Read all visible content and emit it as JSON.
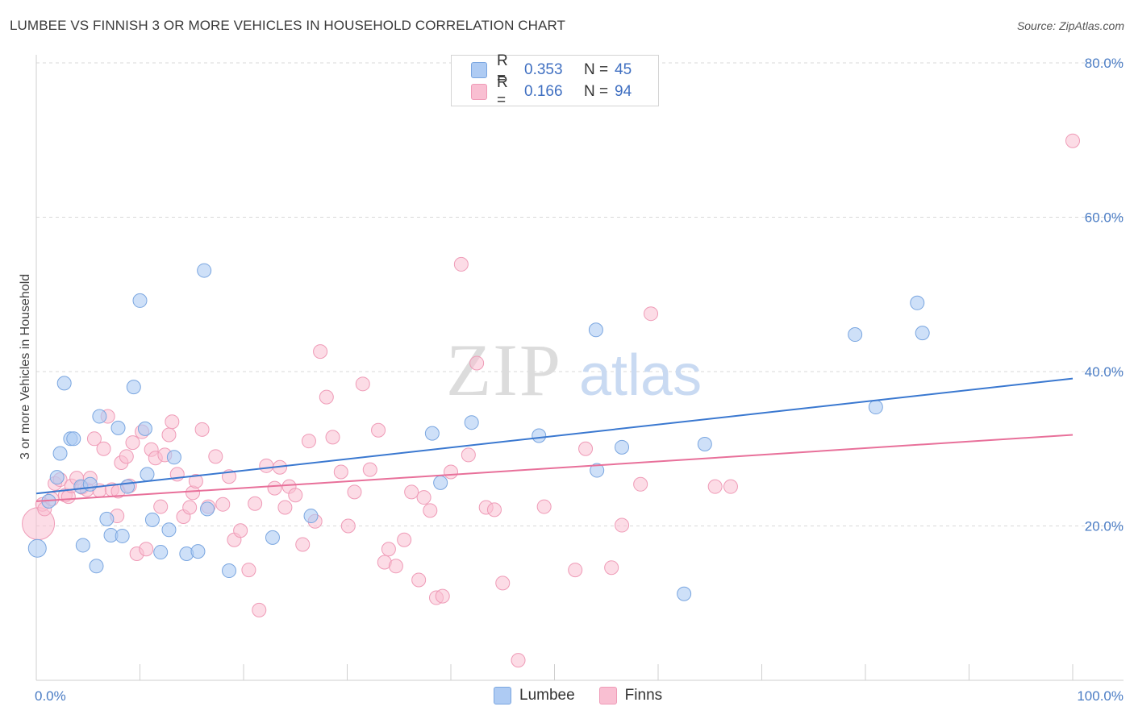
{
  "title": "LUMBEE VS FINNISH 3 OR MORE VEHICLES IN HOUSEHOLD CORRELATION CHART",
  "source": "Source: ZipAtlas.com",
  "watermark": {
    "zip": "ZIP",
    "atlas": "atlas"
  },
  "legend": {
    "series": [
      {
        "r_label": "R =",
        "r_value": "0.353",
        "n_label": "N =",
        "n_value": "45"
      },
      {
        "r_label": "R =",
        "r_value": "0.166",
        "n_label": "N =",
        "n_value": "94"
      }
    ]
  },
  "bottom_legend": [
    "Lumbee",
    "Finns"
  ],
  "colors": {
    "lumbee_fill": "#aecbf3",
    "lumbee_stroke": "#7aa6e0",
    "lumbee_line": "#3a78d0",
    "finns_fill": "#f9bfd2",
    "finns_stroke": "#ef9bb7",
    "finns_line": "#e8709a",
    "tick_text": "#4a7cc4",
    "grid": "#d9d9d9"
  },
  "chart_data": {
    "type": "scatter",
    "title": "LUMBEE VS FINNISH 3 OR MORE VEHICLES IN HOUSEHOLD CORRELATION CHART",
    "xlabel": "",
    "ylabel": "3 or more Vehicles in Household",
    "xlim": [
      0,
      100
    ],
    "ylim": [
      0,
      80
    ],
    "x_tick_labels": [
      "0.0%",
      "100.0%"
    ],
    "y_ticks": [
      20,
      40,
      60,
      80
    ],
    "y_tick_labels": [
      "20.0%",
      "40.0%",
      "60.0%",
      "80.0%"
    ],
    "grid": true,
    "legend_placement": "top-center",
    "series": [
      {
        "name": "Lumbee",
        "points": [
          [
            0.1,
            17.1
          ],
          [
            1.2,
            23.2
          ],
          [
            2.0,
            26.3
          ],
          [
            2.3,
            29.4
          ],
          [
            2.7,
            38.5
          ],
          [
            3.3,
            31.3
          ],
          [
            3.6,
            31.3
          ],
          [
            4.3,
            25.1
          ],
          [
            4.5,
            17.5
          ],
          [
            5.2,
            25.4
          ],
          [
            5.8,
            14.8
          ],
          [
            6.1,
            34.2
          ],
          [
            6.8,
            20.9
          ],
          [
            7.2,
            18.8
          ],
          [
            7.9,
            32.7
          ],
          [
            8.3,
            18.7
          ],
          [
            8.8,
            25.1
          ],
          [
            9.4,
            38.0
          ],
          [
            10.0,
            49.2
          ],
          [
            10.5,
            32.6
          ],
          [
            10.7,
            26.7
          ],
          [
            11.2,
            20.8
          ],
          [
            12.0,
            16.6
          ],
          [
            12.8,
            19.5
          ],
          [
            13.3,
            28.9
          ],
          [
            14.5,
            16.4
          ],
          [
            15.6,
            16.7
          ],
          [
            16.2,
            53.1
          ],
          [
            16.5,
            22.2
          ],
          [
            18.6,
            14.2
          ],
          [
            22.8,
            18.5
          ],
          [
            26.5,
            21.3
          ],
          [
            38.2,
            32.0
          ],
          [
            39.0,
            25.6
          ],
          [
            42.0,
            33.4
          ],
          [
            48.5,
            31.7
          ],
          [
            54.0,
            45.4
          ],
          [
            54.1,
            27.2
          ],
          [
            56.5,
            30.2
          ],
          [
            62.5,
            11.2
          ],
          [
            64.5,
            30.6
          ],
          [
            79.0,
            44.8
          ],
          [
            81.0,
            35.4
          ],
          [
            85.0,
            48.9
          ],
          [
            85.5,
            45.0
          ]
        ]
      },
      {
        "name": "Finns",
        "points": [
          [
            0.2,
            20.3
          ],
          [
            0.6,
            22.8
          ],
          [
            0.8,
            22.2
          ],
          [
            1.5,
            23.5
          ],
          [
            1.8,
            25.5
          ],
          [
            2.3,
            26.0
          ],
          [
            2.8,
            24.0
          ],
          [
            3.1,
            23.8
          ],
          [
            3.4,
            25.2
          ],
          [
            3.9,
            26.2
          ],
          [
            4.4,
            25.0
          ],
          [
            4.9,
            24.7
          ],
          [
            5.2,
            26.2
          ],
          [
            5.6,
            31.3
          ],
          [
            6.1,
            24.6
          ],
          [
            6.5,
            30.0
          ],
          [
            6.9,
            34.2
          ],
          [
            7.3,
            24.7
          ],
          [
            7.8,
            21.3
          ],
          [
            7.9,
            24.5
          ],
          [
            8.2,
            28.2
          ],
          [
            8.7,
            29.0
          ],
          [
            9.0,
            25.2
          ],
          [
            9.3,
            30.8
          ],
          [
            9.7,
            16.4
          ],
          [
            10.2,
            32.2
          ],
          [
            10.6,
            17.0
          ],
          [
            11.1,
            29.9
          ],
          [
            11.5,
            28.8
          ],
          [
            12.0,
            22.5
          ],
          [
            12.4,
            29.2
          ],
          [
            12.8,
            31.8
          ],
          [
            13.1,
            33.5
          ],
          [
            13.6,
            26.7
          ],
          [
            14.2,
            21.2
          ],
          [
            14.8,
            22.4
          ],
          [
            15.1,
            24.3
          ],
          [
            15.4,
            25.8
          ],
          [
            16.0,
            32.5
          ],
          [
            16.6,
            22.5
          ],
          [
            17.3,
            29.0
          ],
          [
            18.0,
            22.8
          ],
          [
            18.6,
            26.4
          ],
          [
            19.1,
            18.2
          ],
          [
            19.7,
            19.4
          ],
          [
            20.5,
            14.3
          ],
          [
            21.1,
            22.9
          ],
          [
            21.5,
            9.1
          ],
          [
            22.2,
            27.8
          ],
          [
            23.0,
            24.9
          ],
          [
            23.5,
            27.6
          ],
          [
            24.0,
            22.4
          ],
          [
            24.4,
            25.1
          ],
          [
            25.0,
            24.0
          ],
          [
            25.7,
            17.6
          ],
          [
            26.3,
            31.0
          ],
          [
            26.9,
            20.6
          ],
          [
            27.4,
            42.6
          ],
          [
            28.0,
            36.7
          ],
          [
            28.6,
            31.5
          ],
          [
            29.4,
            27.0
          ],
          [
            30.1,
            20.0
          ],
          [
            30.7,
            24.4
          ],
          [
            31.5,
            38.4
          ],
          [
            32.2,
            27.3
          ],
          [
            33.0,
            32.4
          ],
          [
            33.6,
            15.3
          ],
          [
            34.0,
            17.0
          ],
          [
            34.7,
            14.8
          ],
          [
            35.5,
            18.2
          ],
          [
            36.2,
            24.4
          ],
          [
            36.9,
            13.0
          ],
          [
            37.4,
            23.7
          ],
          [
            38.0,
            22.0
          ],
          [
            38.6,
            10.7
          ],
          [
            39.2,
            10.9
          ],
          [
            40.0,
            27.0
          ],
          [
            41.0,
            53.9
          ],
          [
            41.7,
            29.2
          ],
          [
            42.5,
            41.1
          ],
          [
            43.4,
            22.4
          ],
          [
            44.2,
            22.1
          ],
          [
            45.0,
            12.6
          ],
          [
            46.5,
            2.6
          ],
          [
            49.0,
            22.5
          ],
          [
            52.0,
            14.3
          ],
          [
            53.0,
            30.0
          ],
          [
            55.5,
            14.6
          ],
          [
            56.5,
            20.1
          ],
          [
            58.3,
            25.4
          ],
          [
            59.3,
            47.5
          ],
          [
            65.5,
            25.1
          ],
          [
            67.0,
            25.1
          ],
          [
            100.0,
            69.9
          ]
        ]
      }
    ],
    "trend_lines": [
      {
        "name": "Lumbee",
        "x": [
          0,
          100
        ],
        "y": [
          24.2,
          39.1
        ]
      },
      {
        "name": "Finns",
        "x": [
          0,
          100
        ],
        "y": [
          23.2,
          31.8
        ]
      }
    ]
  }
}
